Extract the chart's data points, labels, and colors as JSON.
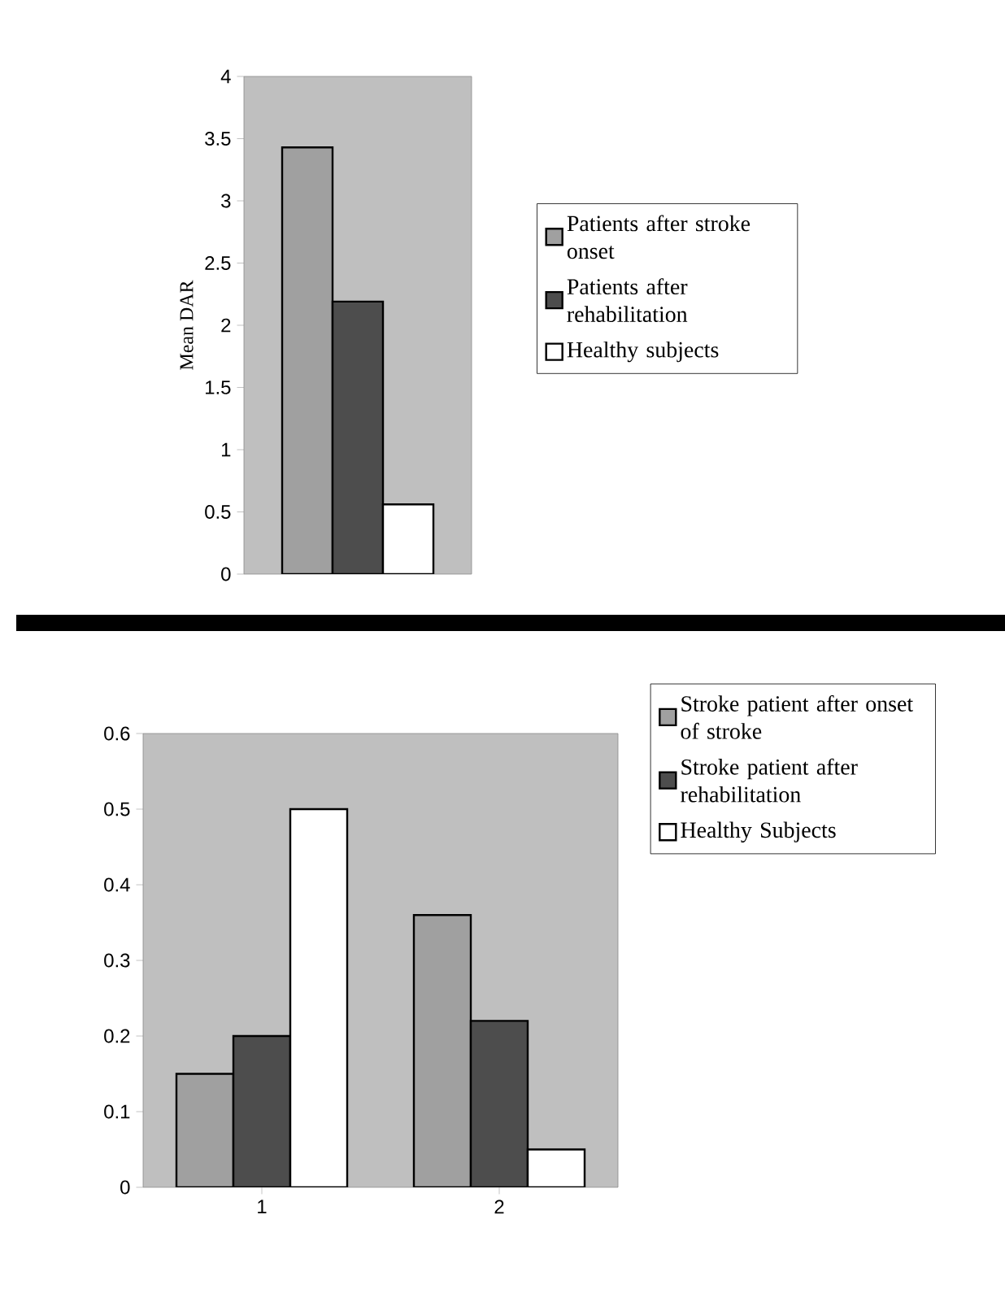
{
  "chart_data": [
    {
      "type": "bar",
      "ylabel": "Mean DAR",
      "categories": [
        null
      ],
      "ylim": [
        0,
        4
      ],
      "yticks": [
        0,
        0.5,
        1,
        1.5,
        2,
        2.5,
        3,
        3.5,
        4
      ],
      "legend": "right",
      "series": [
        {
          "name": "Patients after stroke onset",
          "color": "#a0a0a0",
          "values": [
            3.43
          ]
        },
        {
          "name": "Patients after rehabilitation",
          "color": "#4d4d4d",
          "values": [
            2.19
          ]
        },
        {
          "name": "Healthy subjects",
          "color": "#ffffff",
          "values": [
            0.56
          ]
        }
      ]
    },
    {
      "type": "bar",
      "categories": [
        "1",
        "2"
      ],
      "ylim": [
        0,
        0.6
      ],
      "yticks": [
        0,
        0.1,
        0.2,
        0.3,
        0.4,
        0.5,
        0.6
      ],
      "legend": "right",
      "series": [
        {
          "name": "Stroke patient after onset of stroke",
          "color": "#a0a0a0",
          "values": [
            0.15,
            0.36
          ]
        },
        {
          "name": "Stroke patient after rehabilitation",
          "color": "#4d4d4d",
          "values": [
            0.2,
            0.22
          ]
        },
        {
          "name": "Healthy Subjects",
          "color": "#ffffff",
          "values": [
            0.5,
            0.05
          ]
        }
      ]
    }
  ]
}
